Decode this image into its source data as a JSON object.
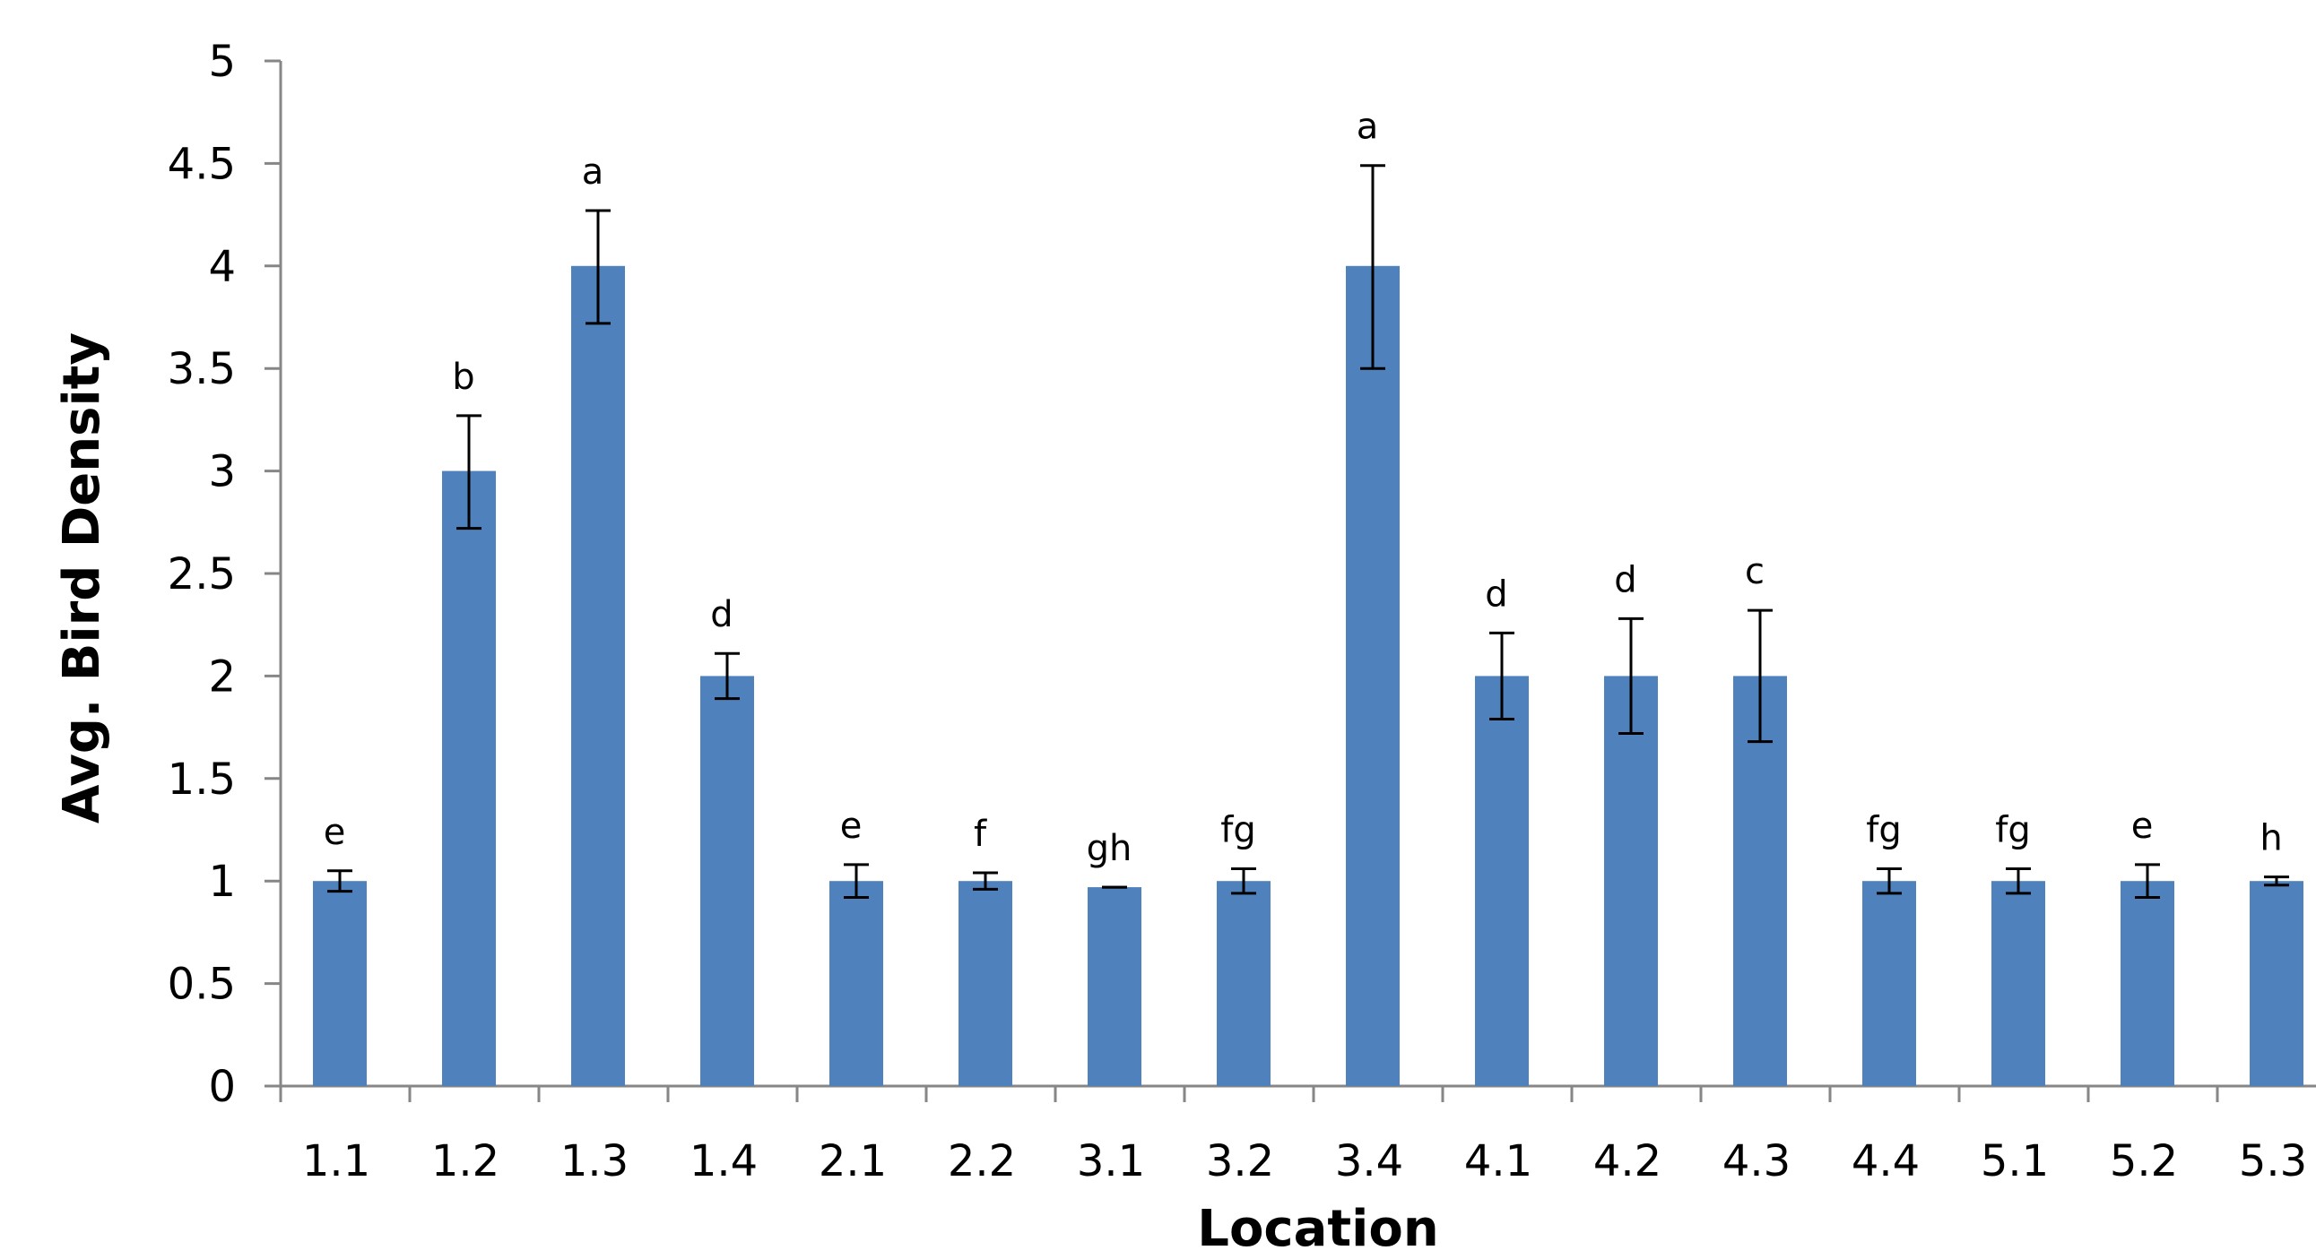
{
  "chart_data": {
    "type": "bar",
    "xlabel": "Location",
    "ylabel": "Avg. Bird Density",
    "ylim": [
      0,
      5
    ],
    "yticks": [
      "0",
      "0.5",
      "1",
      "1.5",
      "2",
      "2.5",
      "3",
      "3.5",
      "4",
      "4.5",
      "5"
    ],
    "grid": false,
    "bar_color": "#4f81bd",
    "categories": [
      "1.1",
      "1.2",
      "1.3",
      "1.4",
      "2.1",
      "2.2",
      "3.1",
      "3.2",
      "3.4",
      "4.1",
      "4.2",
      "4.3",
      "4.4",
      "5.1",
      "5.2",
      "5.3"
    ],
    "values": [
      1.0,
      3.0,
      4.0,
      2.0,
      1.0,
      1.0,
      0.97,
      1.0,
      4.0,
      2.0,
      2.0,
      2.0,
      1.0,
      1.0,
      1.0,
      1.0
    ],
    "error_low": [
      0.95,
      2.72,
      3.72,
      1.89,
      0.92,
      0.96,
      0.97,
      0.94,
      3.5,
      1.79,
      1.72,
      1.68,
      0.94,
      0.94,
      0.92,
      0.98
    ],
    "error_high": [
      1.05,
      3.27,
      4.27,
      2.11,
      1.08,
      1.04,
      0.97,
      1.06,
      4.49,
      2.21,
      2.28,
      2.32,
      1.06,
      1.06,
      1.08,
      1.02
    ],
    "significance_labels": [
      "e",
      "b",
      "a",
      "d",
      "e",
      "f",
      "gh",
      "fg",
      "a",
      "d",
      "d",
      "c",
      "fg",
      "fg",
      "e",
      "h"
    ]
  }
}
